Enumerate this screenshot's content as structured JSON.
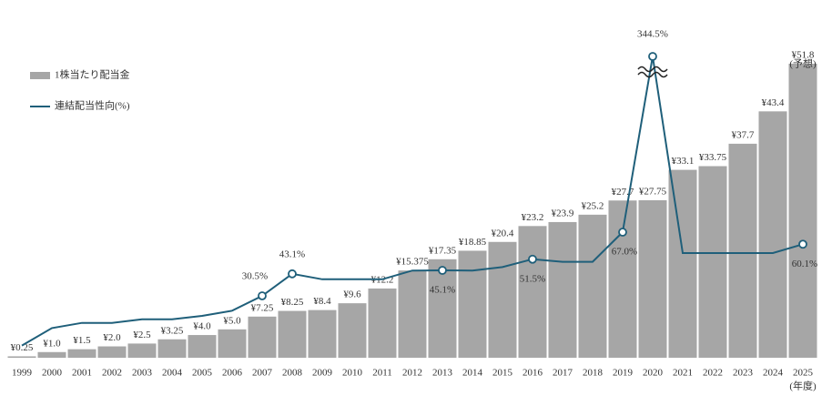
{
  "chart_data": {
    "type": "bar_line",
    "categories": [
      "1999",
      "2000",
      "2001",
      "2002",
      "2003",
      "2004",
      "2005",
      "2006",
      "2007",
      "2008",
      "2009",
      "2010",
      "2011",
      "2012",
      "2013",
      "2014",
      "2015",
      "2016",
      "2017",
      "2018",
      "2019",
      "2020",
      "2021",
      "2022",
      "2023",
      "2024",
      "2025"
    ],
    "x_label": "(年度)",
    "annotation": "(予想)",
    "ylim": [
      0,
      55
    ],
    "y2lim": [
      -5,
      174
    ],
    "axis_break": true,
    "legend": "top-left",
    "series": [
      {
        "name": "1株当たり配当金",
        "type": "bar",
        "color": "#a6a6a6",
        "values": [
          0.25,
          1.0,
          1.5,
          2.0,
          2.5,
          3.25,
          4.0,
          5.0,
          7.25,
          8.25,
          8.4,
          9.6,
          12.2,
          15.375,
          17.35,
          18.85,
          20.4,
          23.2,
          23.9,
          25.2,
          27.7,
          27.75,
          33.1,
          33.75,
          37.7,
          43.4,
          51.8
        ],
        "value_labels": [
          "¥0.25",
          "¥1.0",
          "¥1.5",
          "¥2.0",
          "¥2.5",
          "¥3.25",
          "¥4.0",
          "¥5.0",
          "¥7.25",
          "¥8.25",
          "¥8.4",
          "¥9.6",
          "¥12.2",
          "¥15.375",
          "¥17.35",
          "¥18.85",
          "¥20.4",
          "¥23.2",
          "¥23.9",
          "¥25.2",
          "¥27.7",
          "¥27.75",
          "¥33.1",
          "¥33.75",
          "¥37.7",
          "¥43.4",
          "¥51.8"
        ]
      },
      {
        "name": "連結配当性向(%)",
        "type": "line",
        "axis": "y2",
        "color": "#1f5f7a",
        "values": [
          2,
          12,
          15,
          15,
          17,
          17,
          19,
          22,
          30.5,
          43.1,
          40,
          40,
          40,
          45,
          45.1,
          45,
          47,
          51.5,
          50,
          50,
          67.0,
          344.5,
          55,
          55,
          55,
          55,
          60.1
        ],
        "value_labels": [
          null,
          null,
          null,
          null,
          null,
          null,
          null,
          null,
          "30.5%",
          "43.1%",
          null,
          null,
          null,
          null,
          "45.1%",
          null,
          null,
          "51.5%",
          null,
          null,
          "67.0%",
          "344.5%",
          null,
          null,
          null,
          null,
          "60.1%"
        ]
      }
    ]
  }
}
